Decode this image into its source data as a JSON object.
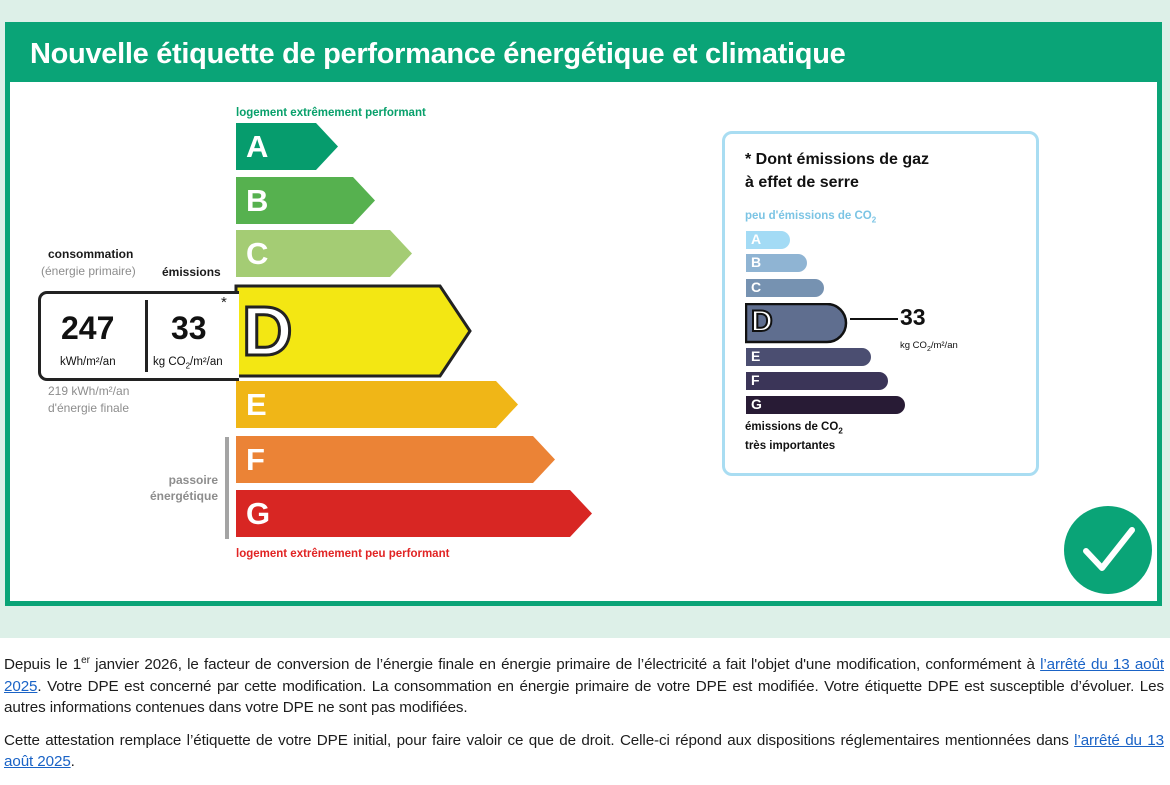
{
  "title": "Nouvelle étiquette de performance énergétique et climatique",
  "dpe": {
    "top_label": "logement extrêmement performant",
    "bottom_label": "logement extrêmement peu performant",
    "classes": [
      {
        "letter": "A",
        "color": "#069c6d"
      },
      {
        "letter": "B",
        "color": "#56b14f"
      },
      {
        "letter": "C",
        "color": "#a4cc74"
      },
      {
        "letter": "D",
        "color": "#f3e713"
      },
      {
        "letter": "E",
        "color": "#f0b617"
      },
      {
        "letter": "F",
        "color": "#eb8336"
      },
      {
        "letter": "G",
        "color": "#d82623"
      }
    ],
    "current_class": "D",
    "consumption_label": "consommation",
    "consumption_sub": "(énergie primaire)",
    "emissions_label": "émissions",
    "consumption_value": "247",
    "consumption_unit": "kWh/m²/an",
    "emissions_value": "33",
    "emissions_unit_pre": "kg CO",
    "emissions_unit_sub": "2",
    "emissions_unit_post": "/m²/an",
    "asterisk": "*",
    "final_energy_line1": "219 kWh/m²/an",
    "final_energy_line2": "d'énergie finale",
    "passoire_line1": "passoire",
    "passoire_line2": "énergétique"
  },
  "ges": {
    "title_line1": "* Dont émissions de gaz",
    "title_line2": "à effet de serre",
    "top_pre": "peu d'émissions de CO",
    "top_sub": "2",
    "bottom_pre": "émissions de CO",
    "bottom_sub": "2",
    "bottom_line2": "très importantes",
    "classes": [
      {
        "letter": "A",
        "color": "#a3dbf5"
      },
      {
        "letter": "B",
        "color": "#8fb4d3"
      },
      {
        "letter": "C",
        "color": "#7692b1"
      },
      {
        "letter": "D",
        "color": "#5f6e8f"
      },
      {
        "letter": "E",
        "color": "#4b4e71"
      },
      {
        "letter": "F",
        "color": "#3b3558"
      },
      {
        "letter": "G",
        "color": "#281b35"
      }
    ],
    "current_class": "D",
    "value": "33",
    "unit_pre": "kg CO",
    "unit_sub": "2",
    "unit_post": "/m²/an"
  },
  "check_icon": "check-circle-icon",
  "text": {
    "p1_before_sup": "Depuis le 1",
    "p1_sup": "er",
    "p1_after_sup": " janvier 2026, le facteur de conversion de l’énergie finale en énergie primaire de l’électricité a fait l'objet d'une modification, conformément à ",
    "p1_link": "l’arrêté du 13 août 2025",
    "p1_end": ". Votre DPE est concerné par cette modification. La consommation en énergie primaire de votre DPE est modifiée. Votre étiquette DPE est susceptible d’évoluer. Les autres informations contenues dans votre DPE ne sont pas modifiées.",
    "p2_start": "Cette attestation remplace l’étiquette de votre DPE initial, pour faire valoir ce que de droit. Celle-ci répond aux dispositions réglementaires mentionnées dans ",
    "p2_link": "l’arrêté du 13 août 2025",
    "p2_end": "."
  }
}
